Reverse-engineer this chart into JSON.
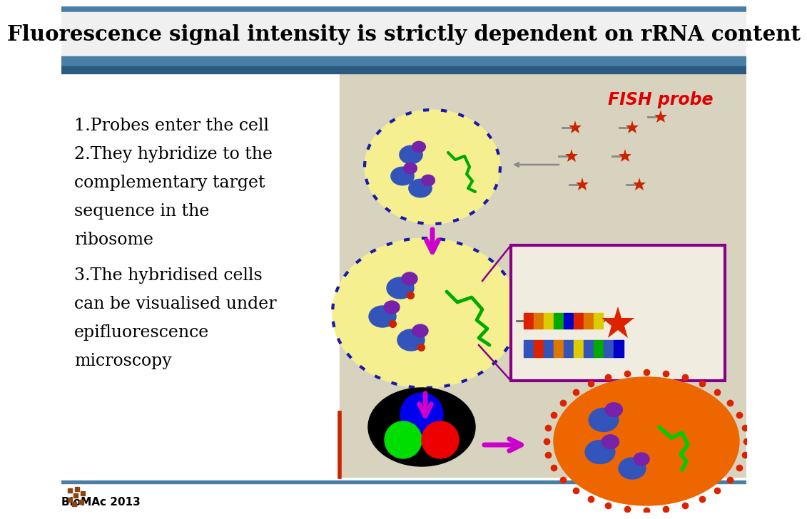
{
  "title": "Fluorescence signal intensity is strictly dependent on rRNA content",
  "title_fontsize": 21,
  "title_color": "#000000",
  "title_bg_color": "#e8e8e8",
  "header_top_stripe": "#4a7fa5",
  "header_bottom_stripe": "#2a5a80",
  "background_color": "#ffffff",
  "diagram_bg": "#d8d3bf",
  "text_lines": [
    "1.Probes enter the cell",
    "2.They hybridize to the",
    "complementary target",
    "sequence in the",
    "ribosome",
    "3.The hybridised cells",
    "can be visualised under",
    "epifluorescence",
    "microscopy"
  ],
  "text_fontsize": 17,
  "fish_probe_label": "FISH probe",
  "fish_probe_color": "#dd0000",
  "footer_text": "BioMAc 2013",
  "footer_fontsize": 11,
  "cell1_color": "#f5ef90",
  "cell2_color": "#f5ef90",
  "dot_border_color": "#1a1aaa",
  "rna_color": "#00aa00",
  "ribosome_large_color": "#3355bb",
  "ribosome_small_color": "#7722aa",
  "probe_color": "#cc2200",
  "arrow_color": "#cc00cc",
  "box_edge_color": "#880088",
  "orange_cell_color": "#ee6600",
  "orange_dot_color": "#dd2200"
}
